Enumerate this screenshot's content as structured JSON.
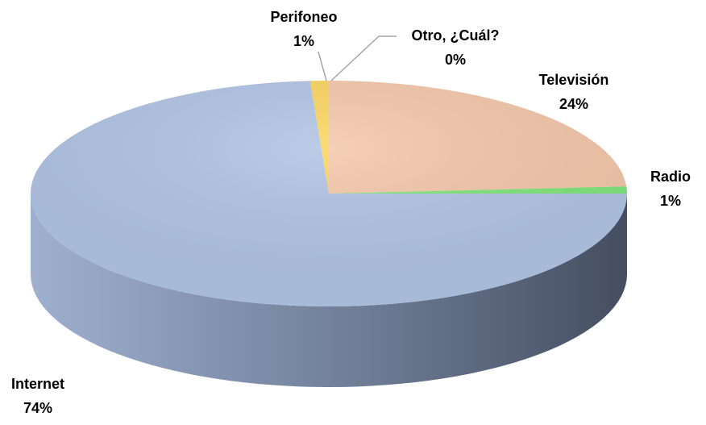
{
  "chart_data": {
    "type": "pie3d",
    "categories": [
      "Otro, ¿Cuál?",
      "Televisión",
      "Radio",
      "Internet",
      "Perifoneo"
    ],
    "values": [
      0,
      24,
      1,
      74,
      1
    ],
    "value_labels": [
      "0%",
      "24%",
      "1%",
      "74%",
      "1%"
    ],
    "colors": [
      "#a6a6a6",
      "#f4c7a9",
      "#7fe57a",
      "#b0c4e4",
      "#fcd55f"
    ]
  }
}
